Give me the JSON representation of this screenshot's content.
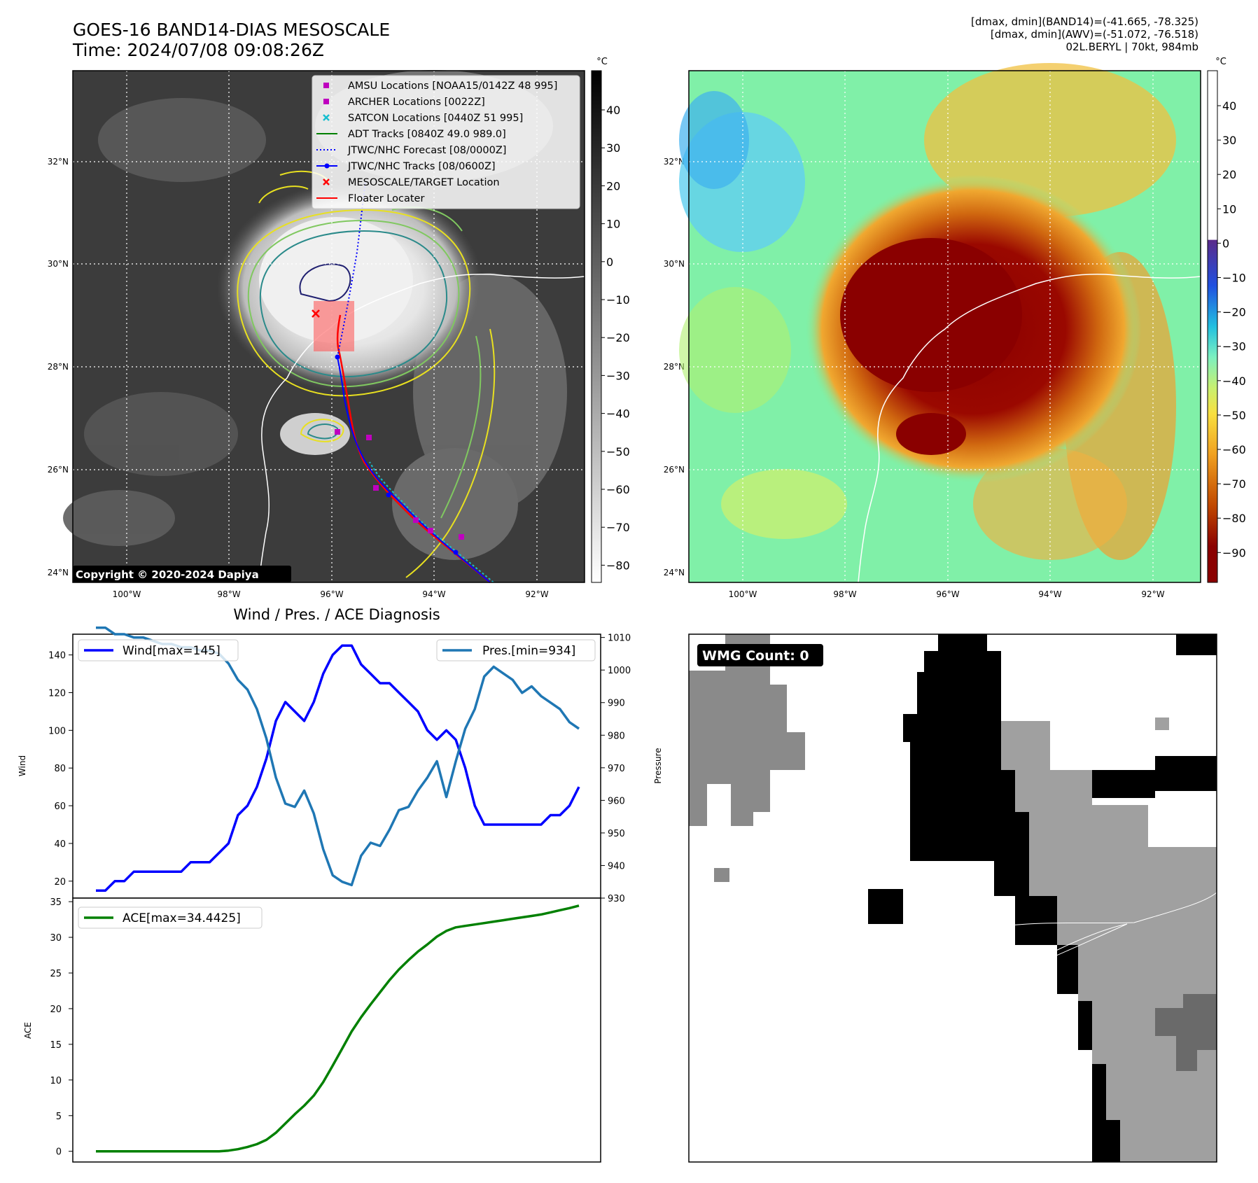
{
  "header": {
    "title_line1": "GOES-16 BAND14-DIAS MESOSCALE",
    "title_line2": "Time: 2024/07/08 09:08:26Z",
    "info_line1": "[dmax, dmin](BAND14)=(-41.665, -78.325)",
    "info_line2": "[dmax, dmin](AWV)=(-51.072, -76.518)",
    "info_line3": "02L.BERYL | 70kt, 984mb"
  },
  "map": {
    "lat_labels": [
      "32°N",
      "30°N",
      "28°N",
      "26°N",
      "24°N"
    ],
    "lon_labels": [
      "100°W",
      "98°W",
      "96°W",
      "94°W",
      "92°W"
    ],
    "copyright": "Copyright © 2020-2024 Dapiya",
    "legend": [
      {
        "label": "AMSU Locations [NOAA15/0142Z 48 995]",
        "marker": "square",
        "color": "#bf00bf"
      },
      {
        "label": "ARCHER Locations [0022Z]",
        "marker": "square",
        "color": "#bf00bf"
      },
      {
        "label": "SATCON Locations [0440Z 51 995]",
        "marker": "x",
        "color": "#17becf"
      },
      {
        "label": "ADT Tracks [0840Z 49.0 989.0]",
        "marker": "line",
        "color": "#008000"
      },
      {
        "label": "JTWC/NHC Forecast [08/0000Z]",
        "marker": "dotted",
        "color": "#0000ff"
      },
      {
        "label": "JTWC/NHC Tracks [08/0600Z]",
        "marker": "line-dot",
        "color": "#0000ff"
      },
      {
        "label": "MESOSCALE/TARGET Location",
        "marker": "x",
        "color": "#ff0000"
      },
      {
        "label": "Floater Locater",
        "marker": "line",
        "color": "#ff0000"
      }
    ],
    "ir_colorbar": {
      "unit": "°C",
      "ticks": [
        "40",
        "30",
        "20",
        "10",
        "0",
        "−10",
        "−20",
        "−30",
        "−40",
        "−50",
        "−60",
        "−70",
        "−80"
      ]
    },
    "enh_colorbar": {
      "unit": "°C",
      "ticks": [
        "40",
        "30",
        "20",
        "10",
        "0",
        "−10",
        "−20",
        "−30",
        "−40",
        "−50",
        "−60",
        "−70",
        "−80",
        "−90"
      ]
    }
  },
  "diagnosis_title": "Wind / Pres. / ACE Diagnosis",
  "wmg_label": "WMG Count: 0",
  "chart_data": [
    {
      "type": "line",
      "title": "Wind / Pres. / ACE Diagnosis",
      "ylabel": "Wind",
      "y2label": "Pressure",
      "ylim": [
        11,
        151
      ],
      "y2lim": [
        930,
        1011
      ],
      "yticks": [
        20,
        40,
        60,
        80,
        100,
        120,
        140
      ],
      "y2ticks": [
        930,
        940,
        950,
        960,
        970,
        980,
        990,
        1000,
        1010
      ],
      "series": [
        {
          "name": "Wind[max=145]",
          "color": "#0000ff",
          "axis": "left",
          "values": [
            15,
            15,
            20,
            20,
            25,
            25,
            25,
            25,
            25,
            25,
            30,
            30,
            30,
            35,
            40,
            55,
            60,
            70,
            85,
            105,
            115,
            110,
            105,
            115,
            130,
            140,
            145,
            145,
            135,
            130,
            125,
            125,
            120,
            115,
            110,
            100,
            95,
            100,
            95,
            80,
            60,
            50,
            50,
            50,
            50,
            50,
            50,
            50,
            55,
            55,
            60,
            70
          ]
        },
        {
          "name": "Pres.[min=934]",
          "color": "#1f77b4",
          "axis": "right",
          "values": [
            1013,
            1013,
            1011,
            1011,
            1010,
            1010,
            1009,
            1008,
            1008,
            1007,
            1007,
            1006,
            1006,
            1005,
            1002,
            997,
            994,
            988,
            979,
            967,
            959,
            958,
            963,
            956,
            945,
            937,
            935,
            934,
            943,
            947,
            946,
            951,
            957,
            958,
            963,
            967,
            972,
            961,
            972,
            982,
            988,
            998,
            1001,
            999,
            997,
            993,
            995,
            992,
            990,
            988,
            984,
            982
          ]
        }
      ]
    },
    {
      "type": "area",
      "ylabel": "ACE",
      "ylim": [
        -1.5,
        35.5
      ],
      "yticks": [
        0,
        5,
        10,
        15,
        20,
        25,
        30,
        35
      ],
      "series": [
        {
          "name": "ACE[max=34.4425]",
          "color": "#008000",
          "values": [
            0,
            0,
            0,
            0,
            0,
            0,
            0,
            0,
            0,
            0,
            0,
            0,
            0,
            0,
            0.1,
            0.3,
            0.6,
            1.0,
            1.6,
            2.6,
            3.9,
            5.2,
            6.4,
            7.8,
            9.7,
            12.0,
            14.4,
            16.8,
            18.8,
            20.6,
            22.3,
            24.0,
            25.5,
            26.8,
            28.0,
            29.0,
            30.1,
            30.9,
            31.4,
            31.6,
            31.8,
            32.0,
            32.2,
            32.4,
            32.6,
            32.8,
            33.0,
            33.2,
            33.5,
            33.8,
            34.1,
            34.4425
          ]
        }
      ]
    }
  ]
}
